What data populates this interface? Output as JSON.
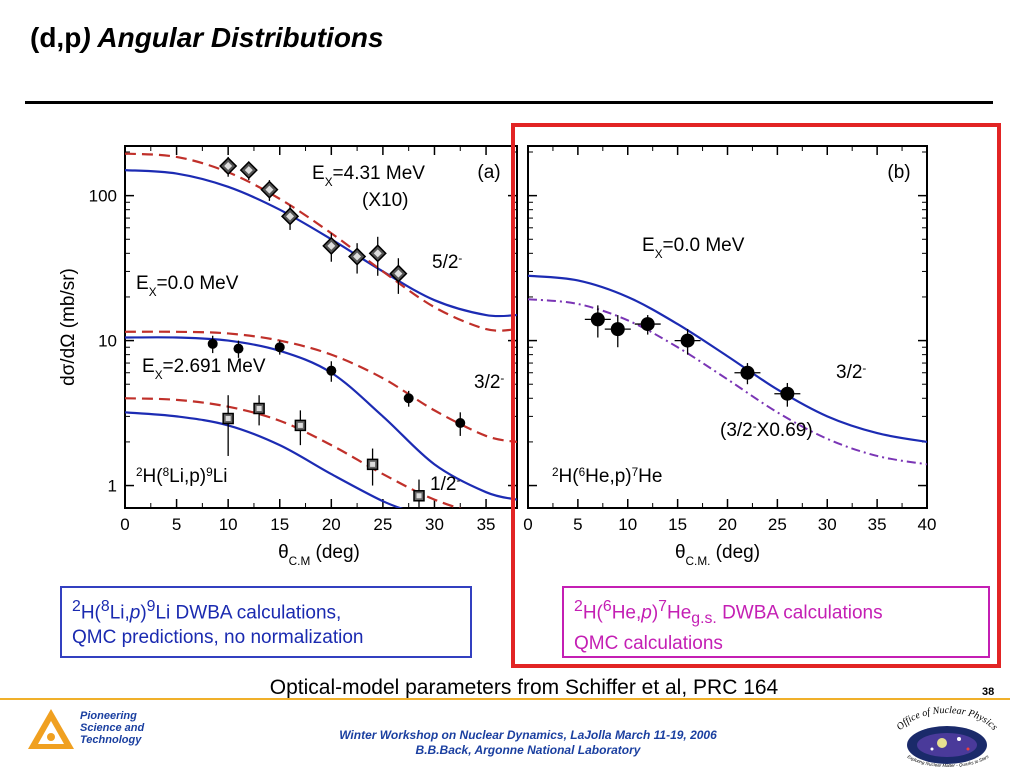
{
  "slide": {
    "title_prefix": "(d,p",
    "title_rest": ") Angular Distributions",
    "page_number": "38",
    "optical_note": "Optical-model parameters from Schiffer et al, PRC 164",
    "footer_line1": "Winter Workshop on Nuclear Dynamics, LaJolla  March 11-19, 2006",
    "footer_line2": "B.B.Back, Argonne National Laboratory",
    "logo_lines": [
      "Pioneering",
      "Science and",
      "Technology"
    ],
    "office_logo_text": "Office of Nuclear Physics",
    "office_logo_tagline": "Exploring Nuclear Matter - Quarks to Stars"
  },
  "captions": {
    "left": {
      "line1_parts": [
        "2",
        "H(",
        "8",
        "Li,",
        "p",
        ")",
        "9",
        "Li DWBA calculations,"
      ],
      "line2": "QMC predictions, no normalization"
    },
    "right": {
      "line1_parts": [
        "2",
        "H(",
        "6",
        "He,",
        "p",
        ")",
        "7",
        "He",
        "g.s.",
        "DWBA calculations"
      ],
      "line2": "QMC calculations"
    }
  },
  "colors": {
    "data_blue": "#1c2bb3",
    "data_red": "#c0302a",
    "data_purple": "#7a35b5",
    "highlight": "#e22424",
    "caption_left": "#3340c0",
    "caption_right": "#c41fb4"
  },
  "chart_data": [
    {
      "type": "scatter",
      "panel_label": "(a)",
      "reaction_label": "2H(8Li,p)9Li",
      "xlabel": "θC.M (deg)",
      "ylabel": "dσ/dΩ (mb/sr)",
      "xlim": [
        0,
        38
      ],
      "ylim": [
        0.7,
        220
      ],
      "yscale": "log",
      "xticks": [
        0,
        5,
        10,
        15,
        20,
        25,
        30,
        35
      ],
      "yticks": [
        1,
        10,
        100
      ],
      "annotations": [
        "EX=4.31 MeV",
        "(X10)",
        "EX=0.0 MeV",
        "EX=2.691 MeV",
        "5/2-",
        "3/2-",
        "1/2-"
      ],
      "series": [
        {
          "name": "EX=4.31 MeV (X10) data",
          "marker": "diamond",
          "x": [
            10,
            12,
            14,
            16,
            20,
            22.5,
            24.5,
            26.5
          ],
          "y": [
            160,
            150,
            110,
            72,
            45,
            38,
            40,
            29
          ],
          "yerr": [
            25,
            22,
            18,
            14,
            10,
            9,
            12,
            8
          ]
        },
        {
          "name": "EX=0.0 MeV data",
          "marker": "circle",
          "x": [
            8.5,
            11,
            15,
            20,
            27.5,
            32.5
          ],
          "y": [
            9.5,
            8.8,
            9.0,
            6.2,
            4.0,
            2.7
          ],
          "yerr": [
            1.3,
            1.2,
            1.0,
            1.0,
            0.5,
            0.5
          ]
        },
        {
          "name": "EX=2.691 MeV data",
          "marker": "square",
          "x": [
            10,
            13,
            17,
            24,
            28.5
          ],
          "y": [
            2.9,
            3.4,
            2.6,
            1.4,
            0.85
          ],
          "yerr": [
            1.3,
            0.8,
            0.7,
            0.4,
            0.25
          ]
        },
        {
          "name": "5/2- DWBA",
          "style": "solid",
          "x": [
            0,
            5,
            10,
            15,
            20,
            25,
            30,
            35,
            38
          ],
          "y": [
            150,
            142,
            115,
            80,
            50,
            30,
            19,
            15,
            15
          ]
        },
        {
          "name": "5/2- QMC",
          "style": "dashed",
          "x": [
            0,
            5,
            10,
            15,
            20,
            25,
            30,
            35,
            38
          ],
          "y": [
            195,
            185,
            145,
            95,
            55,
            30,
            17,
            12,
            12
          ]
        },
        {
          "name": "3/2- DWBA",
          "style": "solid",
          "x": [
            0,
            5,
            10,
            15,
            20,
            25,
            30,
            35,
            38
          ],
          "y": [
            10.5,
            10.5,
            10.0,
            8.5,
            6.0,
            3.0,
            1.4,
            0.9,
            0.8
          ]
        },
        {
          "name": "3/2- QMC",
          "style": "dashed",
          "x": [
            0,
            5,
            10,
            15,
            20,
            25,
            30,
            35,
            38
          ],
          "y": [
            11.5,
            11.5,
            11.2,
            10.0,
            8.0,
            5.5,
            3.3,
            2.2,
            2.0
          ]
        },
        {
          "name": "1/2- DWBA",
          "style": "solid",
          "x": [
            0,
            5,
            10,
            15,
            20,
            25,
            28
          ],
          "y": [
            3.2,
            3.0,
            2.6,
            1.9,
            1.2,
            0.78,
            0.65
          ]
        },
        {
          "name": "1/2- QMC",
          "style": "dashed",
          "x": [
            0,
            5,
            10,
            15,
            20,
            25,
            30,
            35,
            38
          ],
          "y": [
            4.0,
            3.9,
            3.5,
            2.8,
            1.9,
            1.2,
            0.8,
            0.62,
            0.6
          ]
        }
      ]
    },
    {
      "type": "scatter",
      "panel_label": "(b)",
      "reaction_label": "2H(6He,p)7He",
      "xlabel": "θC.M. (deg)",
      "xlim": [
        0,
        40
      ],
      "ylim": [
        0.7,
        220
      ],
      "yscale": "log",
      "xticks": [
        0,
        5,
        10,
        15,
        20,
        25,
        30,
        35,
        40
      ],
      "annotations": [
        "EX=0.0 MeV",
        "3/2-",
        "(3/2-X0.69)"
      ],
      "series": [
        {
          "name": "EX=0.0 MeV data",
          "marker": "circle",
          "x": [
            7,
            9,
            12,
            16,
            22,
            26
          ],
          "y": [
            14.0,
            12.0,
            13.0,
            10.0,
            6.0,
            4.3
          ],
          "yerr": [
            3.5,
            3.0,
            2.0,
            2.0,
            1.0,
            0.8
          ]
        },
        {
          "name": "3/2- DWBA",
          "style": "solid",
          "x": [
            0,
            5,
            10,
            15,
            20,
            25,
            30,
            35,
            40
          ],
          "y": [
            28,
            26,
            20,
            13,
            7.8,
            4.6,
            3.0,
            2.3,
            2.0
          ]
        },
        {
          "name": "3/2- x0.69",
          "style": "dash-dot",
          "x": [
            0,
            5,
            10,
            15,
            20,
            25,
            30,
            35,
            40
          ],
          "y": [
            19.3,
            17.9,
            13.8,
            9.0,
            5.4,
            3.2,
            2.1,
            1.6,
            1.4
          ]
        }
      ]
    }
  ]
}
